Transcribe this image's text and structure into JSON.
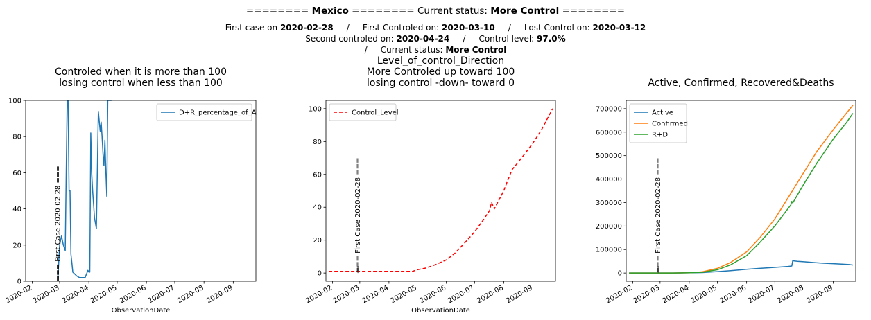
{
  "header": {
    "line1": {
      "pre": "======== ",
      "country": "Mexico",
      "mid": " ======== Current status: ",
      "status": "More Control",
      "post": " ========"
    },
    "line2": {
      "a": "First case on ",
      "first_case": "2020-02-28",
      "b": "     /     First Controled on: ",
      "first_controlled": "2020-03-10",
      "c": "     /     Lost Control on: ",
      "lost_control": "2020-03-12"
    },
    "line3": {
      "a": "Second controled on: ",
      "second_controlled": "2020-04-24",
      "b": "     /     Control level: ",
      "control_level": "97.0%"
    },
    "line4": {
      "a": "/     Current status: ",
      "status": "More Control"
    }
  },
  "chart_data": [
    {
      "type": "line",
      "title": [
        "Controled when it is more than 100",
        "losing control when less than 100"
      ],
      "xlabel": "ObservationDate",
      "ylabel": "",
      "xlim": [
        "2020-01-25",
        "2020-09-25"
      ],
      "ylim": [
        0,
        100
      ],
      "xticks": [
        "2020-02",
        "2020-03",
        "2020-04",
        "2020-05",
        "2020-06",
        "2020-07",
        "2020-08",
        "2020-09"
      ],
      "yticks": [
        0,
        20,
        40,
        60,
        80,
        100
      ],
      "legend_position": "top-right",
      "annotation": {
        "text": "=== First Case 2020-02-28 ===",
        "date": "2020-02-28"
      },
      "series": [
        {
          "name": "D+R_percentage_of_A",
          "color": "#1f77b4",
          "dash": "",
          "x": [
            "2020-02-28",
            "2020-03-01",
            "2020-03-03",
            "2020-03-05",
            "2020-03-07",
            "2020-03-08",
            "2020-03-09",
            "2020-03-10",
            "2020-03-11",
            "2020-03-12",
            "2020-03-13",
            "2020-03-14",
            "2020-03-15",
            "2020-03-17",
            "2020-03-19",
            "2020-03-22",
            "2020-03-25",
            "2020-03-28",
            "2020-03-31",
            "2020-04-01",
            "2020-04-02",
            "2020-04-03",
            "2020-04-04",
            "2020-04-05",
            "2020-04-07",
            "2020-04-09",
            "2020-04-11",
            "2020-04-13",
            "2020-04-14",
            "2020-04-15",
            "2020-04-16",
            "2020-04-17",
            "2020-04-18",
            "2020-04-19",
            "2020-04-20",
            "2020-04-21",
            "2020-04-22",
            "2020-04-23",
            "2020-04-24",
            "2020-04-25"
          ],
          "y": [
            0,
            20,
            25,
            20,
            17,
            60,
            100,
            100,
            50,
            50,
            15,
            10,
            5,
            4,
            3,
            2,
            2,
            2,
            6,
            5,
            5,
            82,
            60,
            50,
            35,
            29,
            94,
            83,
            88,
            80,
            70,
            64,
            78,
            60,
            47,
            100,
            100,
            100,
            100,
            100
          ]
        }
      ]
    },
    {
      "type": "line",
      "title": [
        "Level_of_control_Direction",
        "More Controled up toward 100",
        "losing control -down- toward 0"
      ],
      "xlabel": "ObservationDate",
      "ylabel": "",
      "xlim": [
        "2020-01-25",
        "2020-09-25"
      ],
      "ylim": [
        -5,
        105
      ],
      "xticks": [
        "2020-02",
        "2020-03",
        "2020-04",
        "2020-05",
        "2020-06",
        "2020-07",
        "2020-08",
        "2020-09"
      ],
      "yticks": [
        0,
        20,
        40,
        60,
        80,
        100
      ],
      "legend_position": "top-left",
      "annotation": {
        "text": "=== First Case 2020-02-28 ===",
        "date": "2020-02-28"
      },
      "series": [
        {
          "name": "Control_Level",
          "color": "#ff0000",
          "dash": "5,3",
          "x": [
            "2020-01-28",
            "2020-02-15",
            "2020-03-01",
            "2020-03-15",
            "2020-04-01",
            "2020-04-15",
            "2020-04-26",
            "2020-05-01",
            "2020-05-10",
            "2020-05-20",
            "2020-06-01",
            "2020-06-10",
            "2020-06-20",
            "2020-07-01",
            "2020-07-10",
            "2020-07-17",
            "2020-07-19",
            "2020-07-22",
            "2020-08-01",
            "2020-08-05",
            "2020-08-10",
            "2020-08-20",
            "2020-09-01",
            "2020-09-10",
            "2020-09-22"
          ],
          "y": [
            1,
            1,
            1,
            1,
            1,
            1,
            1,
            2,
            3,
            5,
            8,
            12,
            18,
            25,
            32,
            38,
            43,
            39,
            50,
            56,
            63,
            70,
            79,
            87,
            100
          ]
        }
      ]
    },
    {
      "type": "line",
      "title": [
        "Active, Confirmed, Recovered&Deaths"
      ],
      "xlabel": "",
      "ylabel": "",
      "xlim": [
        "2020-01-25",
        "2020-09-25"
      ],
      "ylim": [
        -35000,
        735000
      ],
      "xticks": [
        "2020-02",
        "2020-03",
        "2020-04",
        "2020-05",
        "2020-06",
        "2020-07",
        "2020-08",
        "2020-09"
      ],
      "yticks": [
        0,
        100000,
        200000,
        300000,
        400000,
        500000,
        600000,
        700000
      ],
      "legend_position": "top-left",
      "annotation": {
        "text": "=== First Case 2020-02-28 ===",
        "date": "2020-02-28"
      },
      "series": [
        {
          "name": "Active",
          "color": "#1f77b4",
          "dash": "",
          "x": [
            "2020-01-28",
            "2020-03-15",
            "2020-04-15",
            "2020-05-01",
            "2020-05-15",
            "2020-06-01",
            "2020-06-15",
            "2020-07-01",
            "2020-07-15",
            "2020-07-19",
            "2020-07-20",
            "2020-07-25",
            "2020-08-01",
            "2020-08-10",
            "2020-08-20",
            "2020-09-01",
            "2020-09-10",
            "2020-09-18",
            "2020-09-22"
          ],
          "y": [
            0,
            0,
            2000,
            6000,
            10000,
            16000,
            20000,
            24000,
            28000,
            30000,
            52000,
            50000,
            48000,
            45000,
            42000,
            40000,
            38000,
            36000,
            34000
          ]
        },
        {
          "name": "Confirmed",
          "color": "#ff7f0e",
          "dash": "",
          "x": [
            "2020-01-28",
            "2020-03-15",
            "2020-04-01",
            "2020-04-15",
            "2020-05-01",
            "2020-05-15",
            "2020-06-01",
            "2020-06-15",
            "2020-07-01",
            "2020-07-15",
            "2020-08-01",
            "2020-08-15",
            "2020-09-01",
            "2020-09-15",
            "2020-09-22"
          ],
          "y": [
            0,
            0,
            1200,
            5000,
            20000,
            45000,
            90000,
            150000,
            230000,
            320000,
            430000,
            520000,
            610000,
            680000,
            715000
          ]
        },
        {
          "name": "R+D",
          "color": "#2ca02c",
          "dash": "",
          "x": [
            "2020-01-28",
            "2020-03-15",
            "2020-04-01",
            "2020-04-15",
            "2020-05-01",
            "2020-05-15",
            "2020-06-01",
            "2020-06-15",
            "2020-07-01",
            "2020-07-18",
            "2020-07-19",
            "2020-07-20",
            "2020-08-01",
            "2020-08-15",
            "2020-09-01",
            "2020-09-15",
            "2020-09-22"
          ],
          "y": [
            0,
            0,
            1000,
            3000,
            14000,
            35000,
            74000,
            130000,
            200000,
            290000,
            305000,
            298000,
            380000,
            470000,
            570000,
            640000,
            680000
          ]
        }
      ]
    }
  ]
}
